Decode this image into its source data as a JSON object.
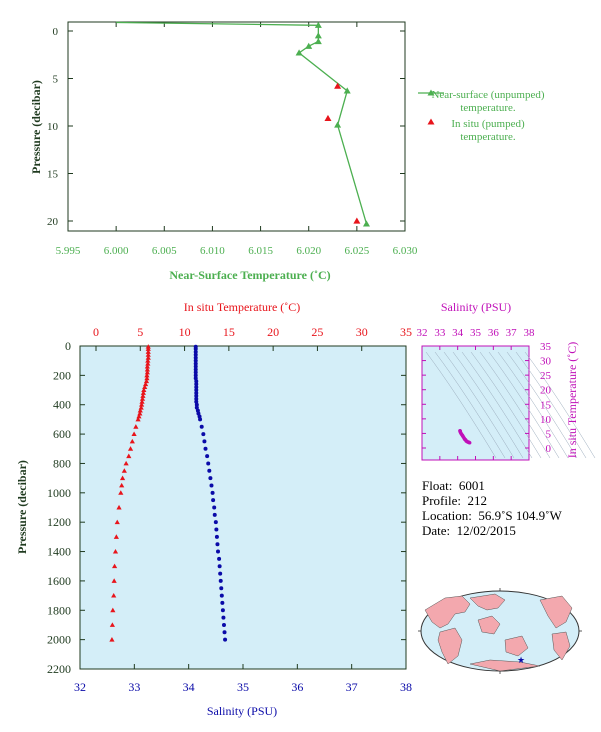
{
  "colors": {
    "green": "#4caf50",
    "red": "#e8141b",
    "blue": "#0a0aa8",
    "magenta": "#c010b8",
    "panel_bg": "#d4eef8",
    "dark": "#1f3a1f"
  },
  "chart_data": [
    {
      "type": "line",
      "title": "",
      "xlabel": "Near-Surface Temperature (˚C)",
      "ylabel": "Pressure (decibar)",
      "xlim": [
        5.995,
        6.03
      ],
      "ylim": [
        22,
        0
      ],
      "xticks": [
        "5.995",
        "6.000",
        "6.005",
        "6.010",
        "6.015",
        "6.020",
        "6.025",
        "6.030"
      ],
      "yticks": [
        "0",
        "5",
        "10",
        "15",
        "20"
      ],
      "legend": [
        "Near-surface (unpumped) temperature.",
        "In situ (pumped) temperature."
      ],
      "series": [
        {
          "name": "Near-surface (unpumped) temperature.",
          "x": [
            6.0,
            6.021,
            6.021,
            6.021,
            6.02,
            6.019,
            6.024,
            6.023,
            6.026
          ],
          "y": [
            -0.9,
            -0.6,
            0.5,
            1.1,
            1.6,
            2.3,
            6.3,
            9.9,
            20.3
          ]
        },
        {
          "name": "In situ (pumped) temperature.",
          "x": [
            6.023,
            6.022,
            6.025
          ],
          "y": [
            5.8,
            9.2,
            20.0
          ]
        }
      ]
    },
    {
      "type": "scatter",
      "title": "",
      "xlabel_top": "In situ Temperature (˚C)",
      "xlabel_bottom": "Salinity (PSU)",
      "ylabel": "Pressure (decibar)",
      "ylim": [
        2200,
        0
      ],
      "temp_lim": [
        -5,
        35
      ],
      "sal_lim": [
        32,
        38
      ],
      "temp_ticks": [
        "0",
        "5",
        "10",
        "15",
        "20",
        "25",
        "30",
        "35"
      ],
      "sal_ticks": [
        "32",
        "33",
        "34",
        "35",
        "36",
        "37",
        "38"
      ],
      "p_ticks": [
        "0",
        "200",
        "400",
        "600",
        "800",
        "1000",
        "1200",
        "1400",
        "1600",
        "1800",
        "2000",
        "2200"
      ],
      "temperature": {
        "p": [
          5,
          20,
          40,
          60,
          80,
          100,
          120,
          140,
          160,
          180,
          200,
          220,
          240,
          260,
          280,
          300,
          320,
          340,
          360,
          380,
          400,
          420,
          440,
          460,
          480,
          500,
          550,
          600,
          650,
          700,
          750,
          800,
          850,
          900,
          950,
          1000,
          1100,
          1200,
          1300,
          1400,
          1500,
          1600,
          1700,
          1800,
          1900,
          2000
        ],
        "t": [
          5.9,
          5.9,
          5.9,
          5.9,
          5.9,
          5.85,
          5.85,
          5.8,
          5.8,
          5.8,
          5.75,
          5.75,
          5.7,
          5.6,
          5.5,
          5.4,
          5.35,
          5.3,
          5.25,
          5.2,
          5.15,
          5.1,
          5.0,
          4.95,
          4.85,
          4.75,
          4.5,
          4.3,
          4.1,
          3.9,
          3.7,
          3.4,
          3.2,
          3.0,
          2.9,
          2.8,
          2.6,
          2.4,
          2.3,
          2.2,
          2.1,
          2.05,
          2.0,
          1.9,
          1.85,
          1.8
        ]
      },
      "salinity": {
        "p": [
          5,
          20,
          40,
          60,
          80,
          100,
          120,
          140,
          160,
          180,
          200,
          220,
          240,
          260,
          280,
          300,
          320,
          340,
          360,
          380,
          400,
          420,
          440,
          460,
          480,
          500,
          550,
          600,
          650,
          700,
          750,
          800,
          850,
          900,
          950,
          1000,
          1050,
          1100,
          1150,
          1200,
          1250,
          1300,
          1350,
          1400,
          1450,
          1500,
          1550,
          1600,
          1650,
          1700,
          1750,
          1800,
          1850,
          1900,
          1950,
          2000
        ],
        "s": [
          34.13,
          34.13,
          34.13,
          34.13,
          34.13,
          34.13,
          34.13,
          34.13,
          34.13,
          34.13,
          34.13,
          34.13,
          34.14,
          34.14,
          34.14,
          34.14,
          34.14,
          34.14,
          34.14,
          34.14,
          34.15,
          34.15,
          34.17,
          34.18,
          34.2,
          34.21,
          34.24,
          34.27,
          34.29,
          34.31,
          34.34,
          34.36,
          34.38,
          34.4,
          34.42,
          34.44,
          34.45,
          34.47,
          34.48,
          34.5,
          34.51,
          34.52,
          34.53,
          34.54,
          34.56,
          34.57,
          34.58,
          34.59,
          34.6,
          34.61,
          34.62,
          34.63,
          34.64,
          34.65,
          34.66,
          34.67
        ]
      }
    },
    {
      "type": "scatter",
      "title": "",
      "xlabel": "Salinity (PSU)",
      "ylabel": "In situ Temperature (˚C)",
      "xlim": [
        32,
        38
      ],
      "ylim": [
        -2,
        35
      ],
      "xticks": [
        "32",
        "33",
        "34",
        "35",
        "36",
        "37",
        "38"
      ],
      "yticks": [
        "0",
        "5",
        "10",
        "15",
        "20",
        "25",
        "30",
        "35"
      ],
      "ts": {
        "s": [
          34.13,
          34.14,
          34.15,
          34.18,
          34.22,
          34.27,
          34.31,
          34.36,
          34.4,
          34.44,
          34.48,
          34.52,
          34.56,
          34.6,
          34.64,
          34.67
        ],
        "t": [
          5.9,
          5.8,
          5.5,
          5.1,
          4.7,
          4.3,
          3.9,
          3.4,
          3.0,
          2.8,
          2.4,
          2.3,
          2.1,
          2.0,
          1.9,
          1.8
        ]
      }
    }
  ],
  "float_info": {
    "float_label": "Float:",
    "float_value": "6001",
    "profile_label": "Profile:",
    "profile_value": "212",
    "location_label": "Location:",
    "location_value": "56.9˚S  104.9˚W",
    "date_label": "Date:",
    "date_value": "12/02/2015"
  },
  "map": {
    "marker": "star",
    "ocean": "#d4eef8",
    "land": "#f3a8ae"
  }
}
